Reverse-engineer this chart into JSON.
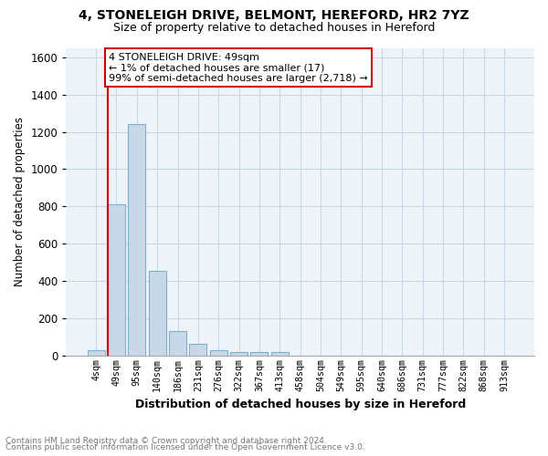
{
  "title_line1": "4, STONELEIGH DRIVE, BELMONT, HEREFORD, HR2 7YZ",
  "title_line2": "Size of property relative to detached houses in Hereford",
  "xlabel": "Distribution of detached houses by size in Hereford",
  "ylabel": "Number of detached properties",
  "footnote1": "Contains HM Land Registry data © Crown copyright and database right 2024.",
  "footnote2": "Contains public sector information licensed under the Open Government Licence v3.0.",
  "bar_labels": [
    "4sqm",
    "49sqm",
    "95sqm",
    "140sqm",
    "186sqm",
    "231sqm",
    "276sqm",
    "322sqm",
    "367sqm",
    "413sqm",
    "458sqm",
    "504sqm",
    "549sqm",
    "595sqm",
    "640sqm",
    "686sqm",
    "731sqm",
    "777sqm",
    "822sqm",
    "868sqm",
    "913sqm"
  ],
  "bar_values": [
    27,
    810,
    1240,
    455,
    130,
    63,
    27,
    17,
    17,
    17,
    0,
    0,
    0,
    0,
    0,
    0,
    0,
    0,
    0,
    0,
    0
  ],
  "bar_color": "#c8d8e8",
  "bar_edgecolor": "#7ab0cc",
  "highlight_bar_index": 1,
  "red_line_color": "#cc0000",
  "ylim": [
    0,
    1650
  ],
  "yticks": [
    0,
    200,
    400,
    600,
    800,
    1000,
    1200,
    1400,
    1600
  ],
  "annotation_text": "4 STONELEIGH DRIVE: 49sqm\n← 1% of detached houses are smaller (17)\n99% of semi-detached houses are larger (2,718) →",
  "annotation_box_facecolor": "#ffffff",
  "annotation_box_edgecolor": "#cc0000",
  "grid_color": "#c8d8e8",
  "bg_color": "#eef4f9"
}
